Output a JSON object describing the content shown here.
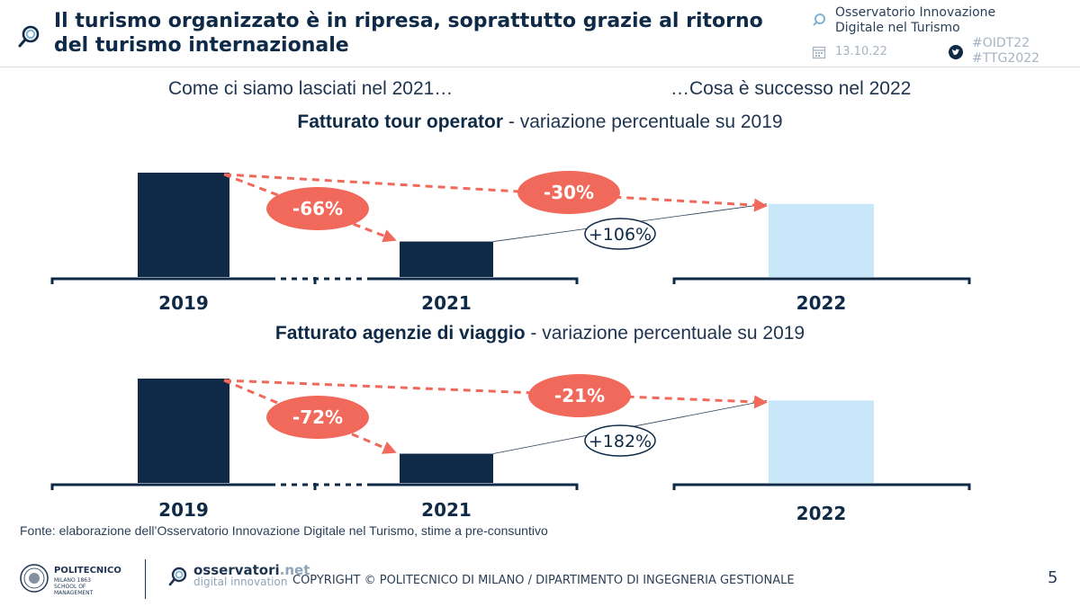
{
  "header": {
    "title": "Il turismo organizzato è in ripresa, soprattutto grazie al ritorno del turismo internazionale",
    "observatory": "Osservatorio Innovazione Digitale nel Turismo",
    "date": "13.10.22",
    "hashtag1": "#OIDT22",
    "hashtag2": "#TTG2022"
  },
  "subheadings": {
    "left": "Come ci siamo lasciati nel 2021…",
    "right": "…Cosa è successo nel 2022"
  },
  "colors": {
    "dark_bar": "#0e2a47",
    "light_bar": "#c8e8fa",
    "arrow": "#f0695a",
    "axis": "#0e2a47"
  },
  "chart_data": [
    {
      "type": "bar",
      "title_bold": "Fatturato tour operator",
      "title_rest": " - variazione percentuale su 2019",
      "categories": [
        "2019",
        "2021",
        "2022"
      ],
      "values": [
        100,
        34,
        70
      ],
      "ylim": [
        0,
        100
      ],
      "annotations": [
        {
          "from": "2019",
          "to": "2021",
          "label": "-66%",
          "style": "pill"
        },
        {
          "from": "2019",
          "to": "2022",
          "label": "-30%",
          "style": "pill"
        },
        {
          "from": "2021",
          "to": "2022",
          "label": "+106%",
          "style": "outline"
        }
      ]
    },
    {
      "type": "bar",
      "title_bold": "Fatturato agenzie di viaggio",
      "title_rest": " - variazione percentuale su 2019",
      "categories": [
        "2019",
        "2021",
        "2022"
      ],
      "values": [
        100,
        28,
        79
      ],
      "ylim": [
        0,
        100
      ],
      "annotations": [
        {
          "from": "2019",
          "to": "2021",
          "label": "-72%",
          "style": "pill"
        },
        {
          "from": "2019",
          "to": "2022",
          "label": "-21%",
          "style": "pill"
        },
        {
          "from": "2021",
          "to": "2022",
          "label": "+182%",
          "style": "outline"
        }
      ]
    }
  ],
  "footer": {
    "source": "Fonte: elaborazione dell’Osservatorio Innovazione Digitale nel Turismo, stime a pre-consuntivo",
    "poli_name": "POLITECNICO",
    "poli_sub": "MILANO 1863",
    "poli_school": "SCHOOL OF MANAGEMENT",
    "osv_name": "osservatori",
    "osv_tld": ".net",
    "osv_sub": "digital innovation",
    "copyright": "COPYRIGHT © POLITECNICO DI MILANO / DIPARTIMENTO DI INGEGNERIA GESTIONALE",
    "page": "5"
  }
}
